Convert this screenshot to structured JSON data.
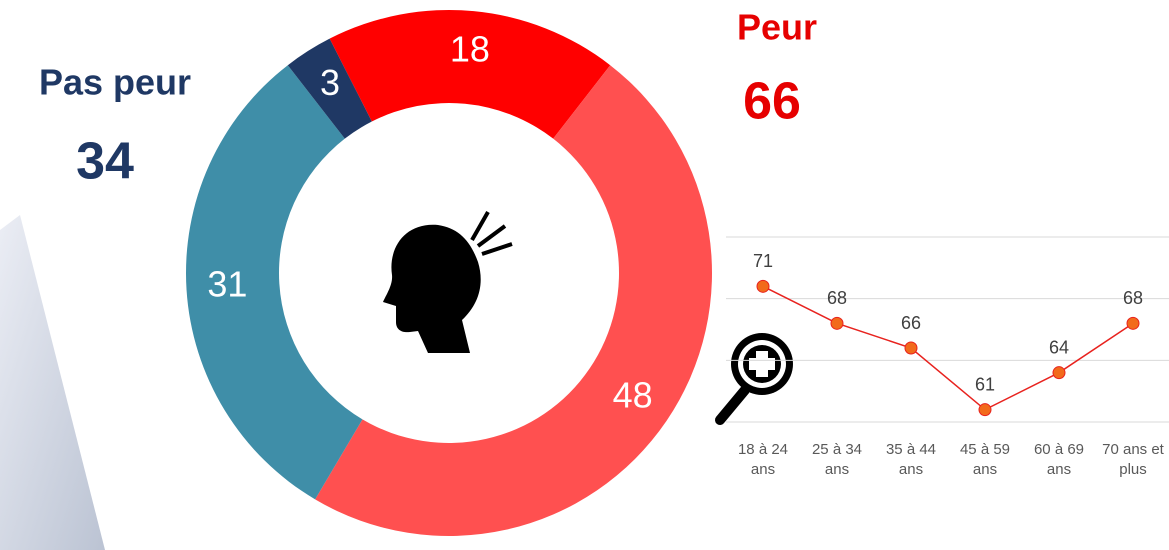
{
  "chart_data": [
    {
      "type": "donut",
      "values": [
        18,
        48,
        31,
        3
      ],
      "colors": [
        "#ff0000",
        "#ff5050",
        "#3f8ea8",
        "#1f3864"
      ],
      "groups": [
        {
          "name": "Pas peur",
          "value": 34,
          "color": "#1f3864"
        },
        {
          "name": "Peur",
          "value": 66,
          "color": "#e60000"
        }
      ]
    },
    {
      "type": "line",
      "categories": [
        "18 à 24 ans",
        "25 à 34 ans",
        "35 à 44 ans",
        "45 à 59 ans",
        "60 à 69 ans",
        "70 ans et plus"
      ],
      "values": [
        71,
        68,
        66,
        61,
        64,
        68
      ],
      "color": "#e8221e",
      "marker_color": "#f26a1b",
      "ylim": [
        60,
        75
      ],
      "yticks": [
        60,
        65,
        70,
        75
      ],
      "grid": true
    }
  ]
}
